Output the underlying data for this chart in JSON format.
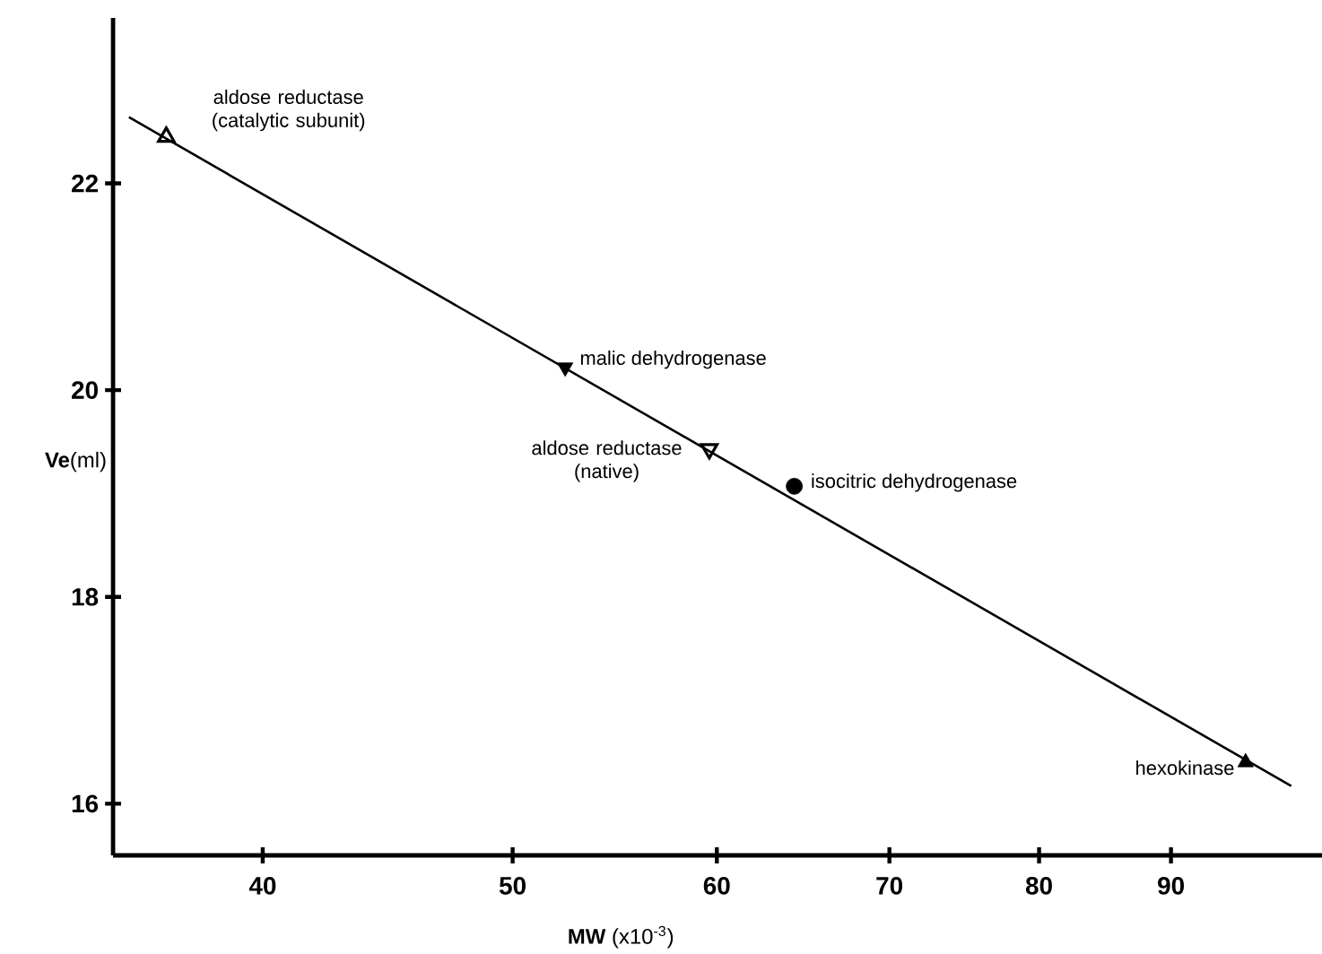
{
  "chart_data": {
    "type": "scatter",
    "xlabel": "**MW** (x10$^{-3}$)",
    "ylabel": "**Ve**(ml)",
    "log": "x",
    "xlim": [
      35,
      103
    ],
    "ylim": [
      15.5,
      23.6
    ],
    "xticks": [
      40,
      50,
      60,
      70,
      80,
      90
    ],
    "yticks": [
      16,
      18,
      20,
      22
    ],
    "series": [
      {
        "type": "line",
        "color": "#000000",
        "marker": "none",
        "x": [
          35.5,
          100.2
        ],
        "values": [
          22.64,
          16.17
        ]
      },
      {
        "name": "aldose reductase (catalytic subunit)",
        "color": "#000000",
        "marker": "triangle",
        "x": [
          36.7
        ],
        "values": [
          22.45
        ]
      },
      {
        "name": "malic dehydrogenase",
        "color": "#000000",
        "marker": "triangle",
        "x": [
          52.4
        ],
        "values": [
          20.22
        ]
      },
      {
        "name": "aldose reductase (native)",
        "color": "#000000",
        "marker": "triangle",
        "x": [
          59.6
        ],
        "values": [
          19.43
        ]
      },
      {
        "name": "isocitric dehydrogenase",
        "color": "#000000",
        "marker": "circle",
        "x": [
          64.3
        ],
        "values": [
          19.07
        ]
      },
      {
        "name": "hexokinase",
        "color": "#000000",
        "marker": "triangle",
        "x": [
          96.2
        ],
        "values": [
          16.4
        ]
      }
    ]
  }
}
